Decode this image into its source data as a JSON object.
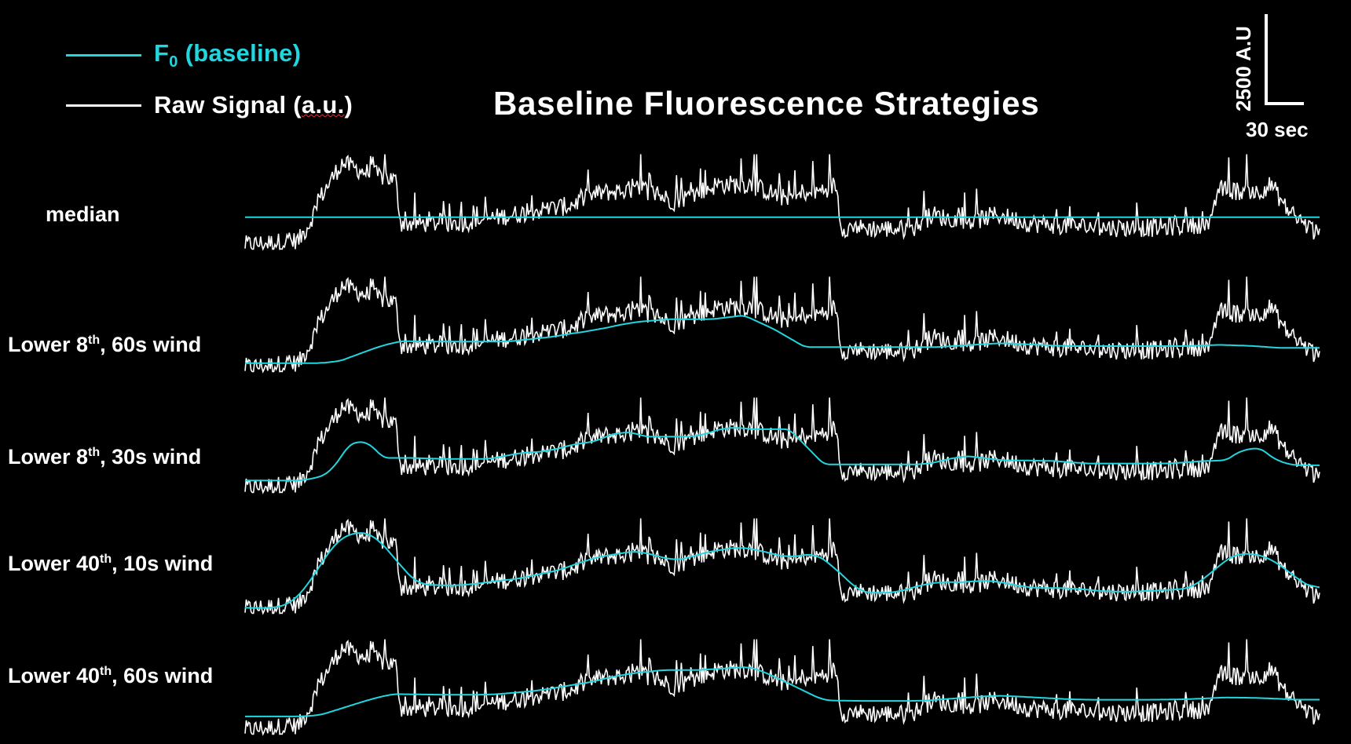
{
  "title": "Baseline Fluorescence Strategies",
  "legend": {
    "baseline_main": "F",
    "baseline_sub": "0",
    "baseline_rest": " (baseline)",
    "raw_pre": "Raw Signal (",
    "raw_mid": "a.u.",
    "raw_post": ")"
  },
  "scale_bar": {
    "y_label": "2500 A.U",
    "x_label": "30 sec"
  },
  "colors": {
    "background": "#000000",
    "raw": "#ffffff",
    "baseline": "#22d6e0"
  },
  "rows": [
    {
      "label_main": "median",
      "label_sup": "",
      "label_rest": ""
    },
    {
      "label_main": "Lower 8",
      "label_sup": "th",
      "label_rest": ", 60s wind"
    },
    {
      "label_main": "Lower 8",
      "label_sup": "th",
      "label_rest": ", 30s wind"
    },
    {
      "label_main": "Lower 40",
      "label_sup": "th",
      "label_rest": ", 10s wind"
    },
    {
      "label_main": "Lower 40",
      "label_sup": "th",
      "label_rest": ", 60s wind"
    }
  ],
  "chart_data": {
    "type": "line",
    "title": "Baseline Fluorescence Strategies",
    "series": [
      {
        "name": "F0 (baseline)",
        "color": "#22d6e0"
      },
      {
        "name": "Raw Signal (a.u.)",
        "color": "#ffffff"
      }
    ],
    "panels": [
      "median",
      "Lower 8th, 60s wind",
      "Lower 8th, 30s wind",
      "Lower 40th, 10s wind",
      "Lower 40th, 60s wind"
    ],
    "grid": false,
    "legend_position": "top-left"
  }
}
